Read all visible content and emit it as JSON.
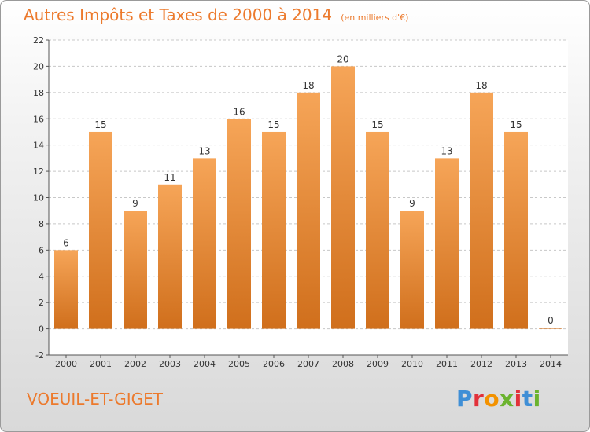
{
  "header": {
    "title": "Autres Impôts et Taxes de 2000 à 2014",
    "subtitle": "(en milliers d'€)"
  },
  "footer": {
    "commune": "VOEUIL-ET-GIGET",
    "logo": "Proxiti"
  },
  "colors": {
    "accent": "#ec7a2d",
    "bar_light": "#f6a558",
    "bar_dark": "#d06f1c"
  },
  "chart_data": {
    "type": "bar",
    "title": "Autres Impôts et Taxes de 2000 à 2014",
    "subtitle": "(en milliers d'€)",
    "categories": [
      "2000",
      "2001",
      "2002",
      "2003",
      "2004",
      "2005",
      "2006",
      "2007",
      "2008",
      "2009",
      "2010",
      "2011",
      "2012",
      "2013",
      "2014"
    ],
    "values": [
      6,
      15,
      9,
      11,
      13,
      16,
      15,
      18,
      20,
      15,
      9,
      13,
      18,
      15,
      0
    ],
    "data_labels": [
      "6",
      "15",
      "9",
      "11",
      "13",
      "16",
      "15",
      "18",
      "20",
      "15",
      "9",
      "13",
      "18",
      "15",
      "0"
    ],
    "ylim": [
      -2,
      22
    ],
    "yticks": [
      -2,
      0,
      2,
      4,
      6,
      8,
      10,
      12,
      14,
      16,
      18,
      20,
      22
    ],
    "grid": "horizontal dashed",
    "legend": "none"
  }
}
